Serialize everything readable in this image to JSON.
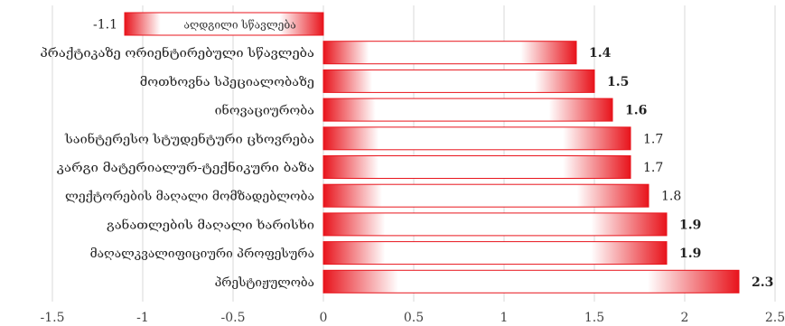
{
  "chart_data": {
    "type": "bar",
    "orientation": "horizontal",
    "title": "",
    "xlabel": "",
    "ylabel": "",
    "xlim": [
      -1.5,
      2.5
    ],
    "xticks": [
      -1.5,
      -1,
      -0.5,
      0,
      0.5,
      1,
      1.5,
      2,
      2.5
    ],
    "xtick_labels": [
      "-1.5",
      "-1",
      "-0.5",
      "0",
      "0.5",
      "1",
      "1.5",
      "2",
      "2.5"
    ],
    "grid": true,
    "legend": "none",
    "bar_color": "#e8141c",
    "categories": [
      "აღდგილი სწავლება",
      "პრაქტიკაზე ორიენტირებული სწავლება",
      "მოთხოვნა სპეციალობაზე",
      "ინოვაციურობა",
      "საინტერესო სტუდენტური ცხოვრება",
      "კარგი მატერიალურ-ტექნიკური ბაზა",
      "ლექტორების მაღალი მომზადებლობა",
      "განათლების მაღალი ხარისხი",
      "მაღალკვალიფიციური პროფესურა",
      "პრესტიჟულობა"
    ],
    "values": [
      -1.1,
      1.4,
      1.5,
      1.6,
      1.7,
      1.7,
      1.8,
      1.9,
      1.9,
      2.3
    ],
    "value_labels": [
      "-1.1",
      "1.4",
      "1.5",
      "1.6",
      "1.7",
      "1.7",
      "1.8",
      "1.9",
      "1.9",
      "2.3"
    ],
    "bold_labels": [
      false,
      true,
      true,
      true,
      false,
      false,
      false,
      true,
      true,
      true
    ]
  }
}
